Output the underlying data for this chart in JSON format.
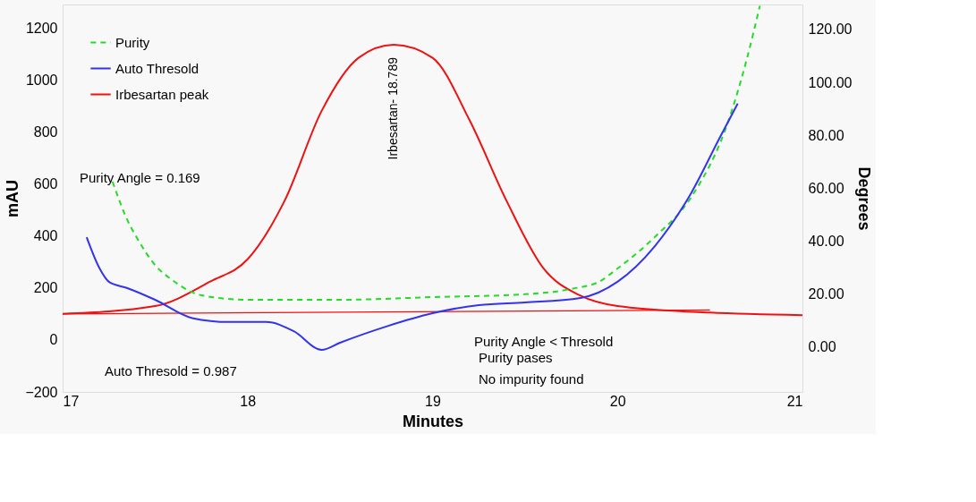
{
  "chart_data": {
    "type": "line",
    "xlabel": "Minutes",
    "ylabel": "mAU",
    "y2label": "Degrees",
    "xlim": [
      17,
      21
    ],
    "xticks": [
      17,
      18,
      19,
      20,
      21
    ],
    "ylim": [
      -200,
      1290
    ],
    "yticks": [
      -200,
      0,
      200,
      400,
      600,
      800,
      1000,
      1200
    ],
    "y2lim": [
      -16.9,
      129.4
    ],
    "y2ticks": [
      {
        "value": 0,
        "label": "0.00"
      },
      {
        "value": 20,
        "label": "20.00"
      },
      {
        "value": 40,
        "label": "40.00"
      },
      {
        "value": 60,
        "label": "60.00"
      },
      {
        "value": 80,
        "label": "80.00"
      },
      {
        "value": 100,
        "label": "100.00"
      },
      {
        "value": 120,
        "label": "120.00"
      }
    ],
    "grid": false,
    "legend": "top left",
    "series": [
      {
        "name": "Purity",
        "color": "#22dd22",
        "axis": "y2",
        "line_style": "dashed",
        "x": [
          17.27,
          17.35,
          17.4,
          17.5,
          17.6,
          17.75,
          18,
          18.5,
          19,
          19.5,
          19.75,
          19.9,
          20,
          20.2,
          20.4,
          20.6,
          20.7,
          20.77
        ],
        "values": [
          62.5,
          48,
          41.5,
          31,
          25,
          19.6,
          17.9,
          17.9,
          18.9,
          20,
          22,
          24.7,
          29.7,
          41.5,
          56.8,
          85.5,
          109,
          129
        ]
      },
      {
        "name": "Auto Thresold",
        "color": "#3333ee",
        "axis": "y2",
        "line_style": "solid",
        "x": [
          17.13,
          17.2,
          17.25,
          17.35,
          17.5,
          17.7,
          17.9,
          18.1,
          18.25,
          18.4,
          18.5,
          18.75,
          19,
          19.25,
          19.5,
          19.8,
          20,
          20.2,
          20.4,
          20.55,
          20.65
        ],
        "values": [
          41.5,
          29.7,
          24.7,
          22.3,
          17.9,
          11,
          9.5,
          9.5,
          6,
          -1,
          1.7,
          7.8,
          12.8,
          15.9,
          16.9,
          18.6,
          24.7,
          38,
          58.4,
          78.7,
          92
        ]
      },
      {
        "name": "Irbesartan peak",
        "color": "#ee1111",
        "line_style": "solid",
        "x": [
          17,
          17.5,
          17.8,
          18,
          18.2,
          18.4,
          18.6,
          18.79,
          19,
          19.2,
          19.4,
          19.6,
          19.8,
          20,
          20.5,
          21
        ],
        "values": [
          100,
          130,
          225,
          310,
          535,
          880,
          1085,
          1135,
          1085,
          845,
          535,
          275,
          170,
          130,
          105,
          95
        ]
      },
      {
        "color": "#ee1111",
        "line_style": "solid",
        "x": [
          17,
          20.5
        ],
        "values": [
          100,
          115
        ]
      }
    ],
    "annotations": [
      {
        "text": "Irbesartan- 18.789",
        "x": 18.789,
        "y": 1135
      },
      "Purity Angle = 0.169",
      "Auto Thresold = 0.987",
      "Purity Angle <  Thresold",
      "Purity pases",
      "No impurity found"
    ]
  }
}
